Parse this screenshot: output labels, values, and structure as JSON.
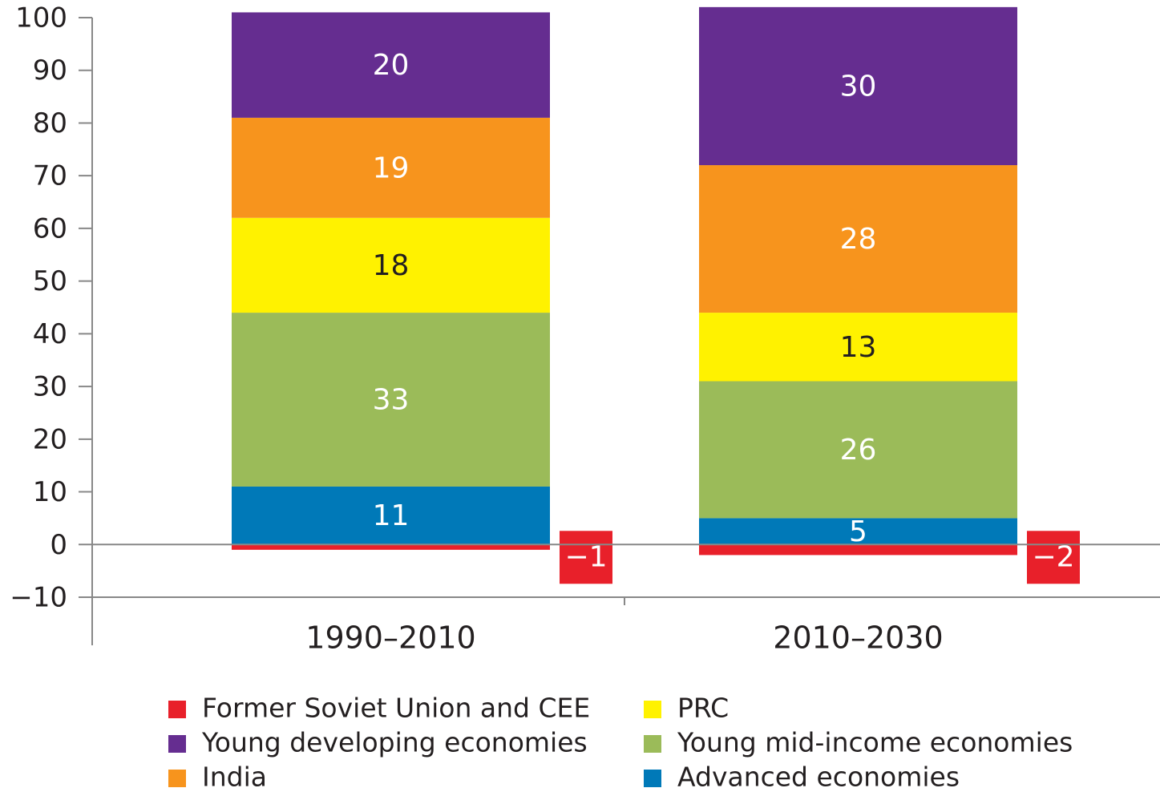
{
  "chart_data": {
    "type": "stacked_bar",
    "categories": [
      "1990–2010",
      "2010–2030"
    ],
    "series": [
      {
        "name": "Advanced economies",
        "color": "#0079b8",
        "label_color": "#ffffff",
        "values": [
          11,
          5
        ]
      },
      {
        "name": "Young mid-income economies",
        "color": "#9bbb59",
        "label_color": "#ffffff",
        "values": [
          33,
          26
        ]
      },
      {
        "name": "PRC",
        "color": "#fff200",
        "label_color": "#231f20",
        "values": [
          18,
          13
        ]
      },
      {
        "name": "India",
        "color": "#f7941d",
        "label_color": "#ffffff",
        "values": [
          19,
          28
        ]
      },
      {
        "name": "Young developing economies",
        "color": "#652d90",
        "label_color": "#ffffff",
        "values": [
          20,
          30
        ]
      },
      {
        "name": "Former Soviet Union and CEE",
        "color": "#e8202a",
        "label_color": "#ffffff",
        "values": [
          -1,
          -2
        ],
        "value_labels": [
          "−1",
          "−2"
        ]
      }
    ],
    "ylim": [
      -10,
      100
    ],
    "yticks": [
      {
        "value": -10,
        "label": "−10"
      },
      0,
      10,
      20,
      30,
      40,
      50,
      60,
      70,
      80,
      90,
      100
    ]
  }
}
